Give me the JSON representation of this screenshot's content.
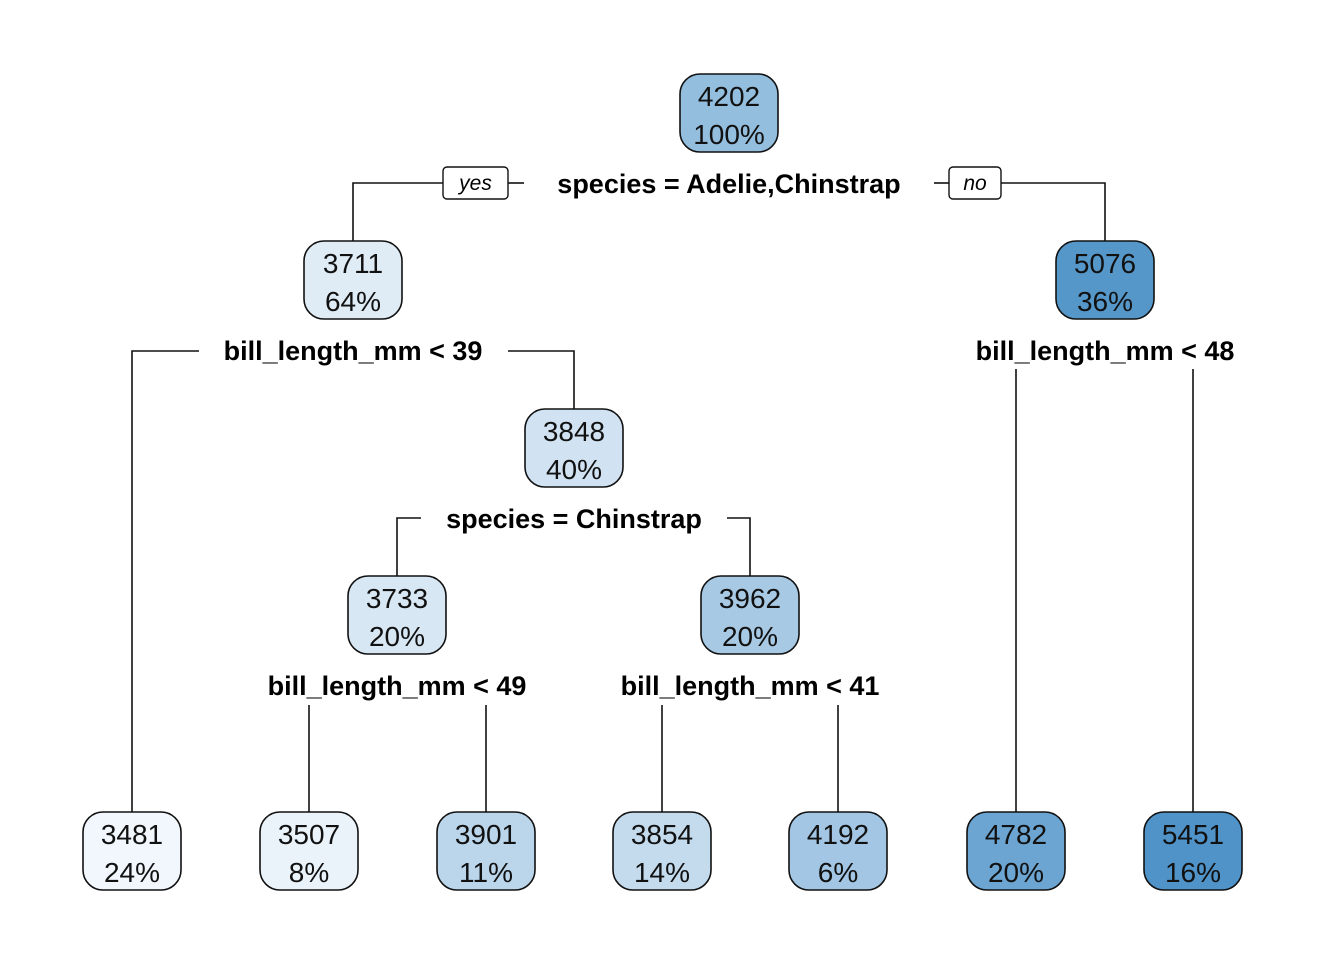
{
  "branch_labels": {
    "yes": "yes",
    "no": "no"
  },
  "colors": {
    "scale_light": "#f3f8fd",
    "scale_dark": "#4a90c6",
    "border": "#111111"
  },
  "nodes": [
    {
      "id": "root",
      "value": "4202",
      "pct": "100%",
      "shade": 0.56
    },
    {
      "id": "n2",
      "value": "3711",
      "pct": "64%",
      "shade": 0.12
    },
    {
      "id": "n3",
      "value": "5076",
      "pct": "36%",
      "shade": 0.93
    },
    {
      "id": "n5",
      "value": "3848",
      "pct": "40%",
      "shade": 0.2
    },
    {
      "id": "n10",
      "value": "3733",
      "pct": "20%",
      "shade": 0.16
    },
    {
      "id": "n11",
      "value": "3962",
      "pct": "20%",
      "shade": 0.45
    },
    {
      "id": "l1",
      "value": "3481",
      "pct": "24%",
      "shade": 0.01
    },
    {
      "id": "l2",
      "value": "3507",
      "pct": "8%",
      "shade": 0.05
    },
    {
      "id": "l3",
      "value": "3901",
      "pct": "11%",
      "shade": 0.33
    },
    {
      "id": "l4",
      "value": "3854",
      "pct": "14%",
      "shade": 0.28
    },
    {
      "id": "l5",
      "value": "4192",
      "pct": "6%",
      "shade": 0.48
    },
    {
      "id": "l6",
      "value": "4782",
      "pct": "20%",
      "shade": 0.8
    },
    {
      "id": "l7",
      "value": "5451",
      "pct": "16%",
      "shade": 0.97
    }
  ],
  "splits": [
    {
      "id": "s_root",
      "text": "species = Adelie,Chinstrap"
    },
    {
      "id": "s_n2",
      "text": "bill_length_mm < 39"
    },
    {
      "id": "s_n3",
      "text": "bill_length_mm < 48"
    },
    {
      "id": "s_n5",
      "text": "species = Chinstrap"
    },
    {
      "id": "s_n10",
      "text": "bill_length_mm < 49"
    },
    {
      "id": "s_n11",
      "text": "bill_length_mm < 41"
    }
  ]
}
